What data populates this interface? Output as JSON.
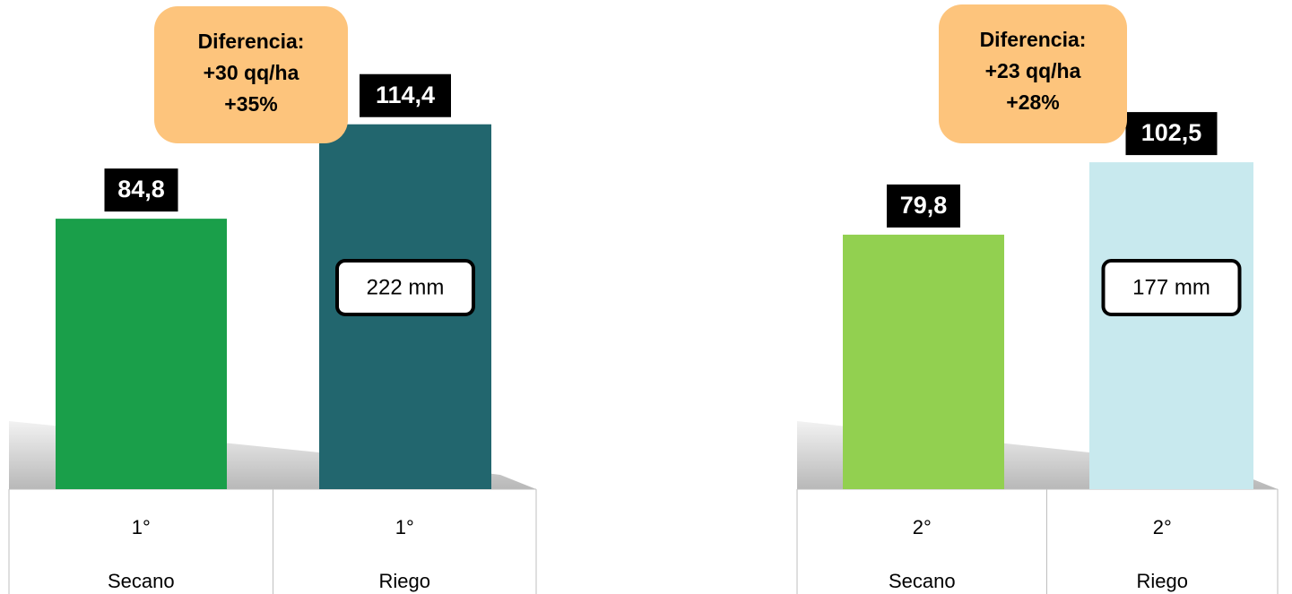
{
  "chart_data": [
    {
      "type": "bar",
      "categories": [
        [
          "1°",
          "Secano"
        ],
        [
          "1°",
          "Riego"
        ]
      ],
      "values": [
        84.8,
        114.4
      ],
      "value_labels": [
        "84,8",
        "114,4"
      ],
      "colors": [
        "#1a9f4a",
        "#22666e"
      ],
      "annotation": [
        "Diferencia:",
        "+30 qq/ha",
        "+35%"
      ],
      "inner_label": "222 mm"
    },
    {
      "type": "bar",
      "categories": [
        [
          "2°",
          "Secano"
        ],
        [
          "2°",
          "Riego"
        ]
      ],
      "values": [
        79.8,
        102.5
      ],
      "value_labels": [
        "79,8",
        "102,5"
      ],
      "colors": [
        "#92d050",
        "#c8e9ee"
      ],
      "annotation": [
        "Diferencia:",
        "+23 qq/ha",
        "+28%"
      ],
      "inner_label": "177 mm"
    }
  ]
}
